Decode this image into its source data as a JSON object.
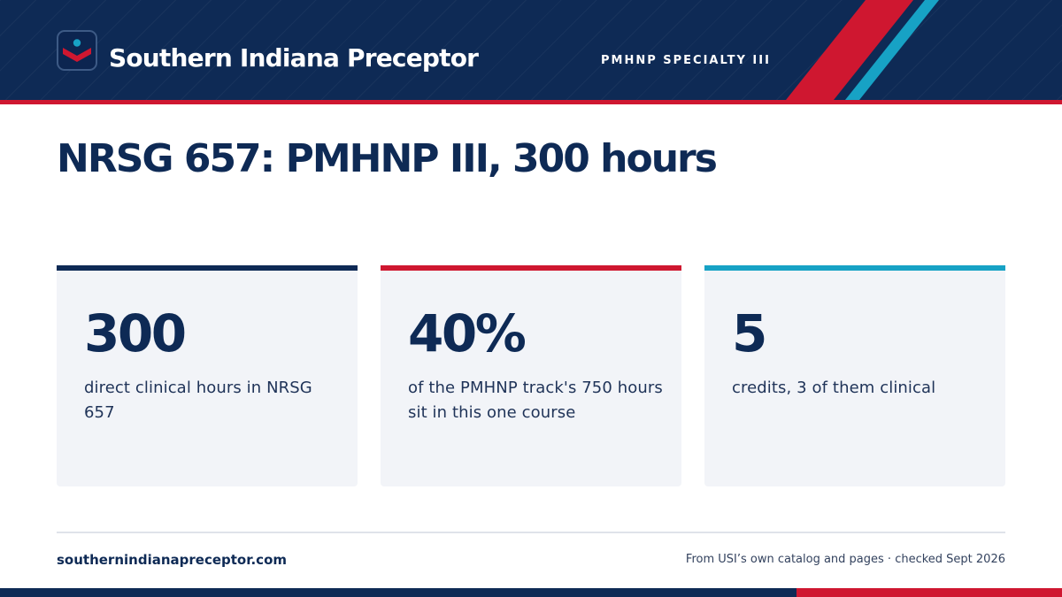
{
  "header": {
    "brand": "Southern Indiana Preceptor",
    "tag": "PMHNP SPECIALTY III"
  },
  "title": "NRSG 657: PMHNP III, 300 hours",
  "stats": [
    {
      "value": "300",
      "description": "direct clinical hours in NRSG 657",
      "accent": "#0e2a55"
    },
    {
      "value": "40%",
      "description": "of the PMHNP track's 750 hours sit in this one course",
      "accent": "#cf1730"
    },
    {
      "value": "5",
      "description": "credits, 3 of them clinical",
      "accent": "#17a2c5"
    }
  ],
  "footer": {
    "site": "southernindianapreceptor.com",
    "source": "From USI’s own catalog and pages · checked Sept 2026"
  },
  "colors": {
    "navy": "#0e2a55",
    "red": "#cf1730",
    "teal": "#17a2c5",
    "card": "#f2f4f8"
  },
  "icons": {
    "logo": "chevron-down-dot-icon"
  }
}
